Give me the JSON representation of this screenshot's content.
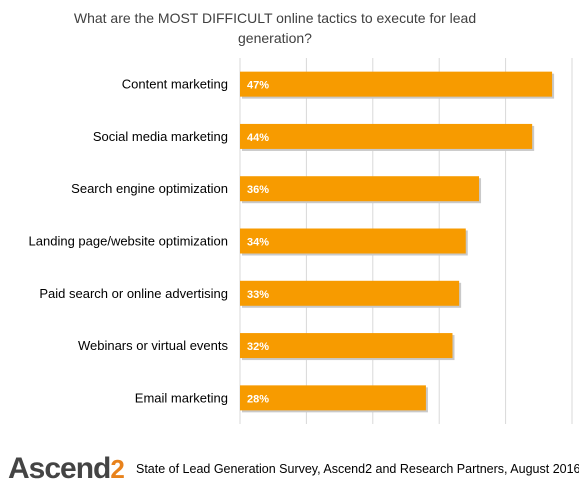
{
  "chart_data": {
    "type": "bar",
    "orientation": "horizontal",
    "title": "What are the MOST DIFFICULT online tactics to execute for lead generation?",
    "categories": [
      "Content marketing",
      "Social media marketing",
      "Search engine optimization",
      "Landing page/website optimization",
      "Paid search or online advertising",
      "Webinars or virtual events",
      "Email marketing"
    ],
    "values": [
      47,
      44,
      36,
      34,
      33,
      32,
      28
    ],
    "value_labels": [
      "47%",
      "44%",
      "36%",
      "34%",
      "33%",
      "32%",
      "28%"
    ],
    "xlim": [
      0,
      50
    ],
    "grid": true,
    "bar_color": "#F79B00",
    "grid_color": "#D9D9D9"
  },
  "footer": {
    "logo_main": "Ascend",
    "logo_num": "2",
    "source": "State of Lead Generation Survey, Ascend2 and Research Partners, August 2016"
  }
}
